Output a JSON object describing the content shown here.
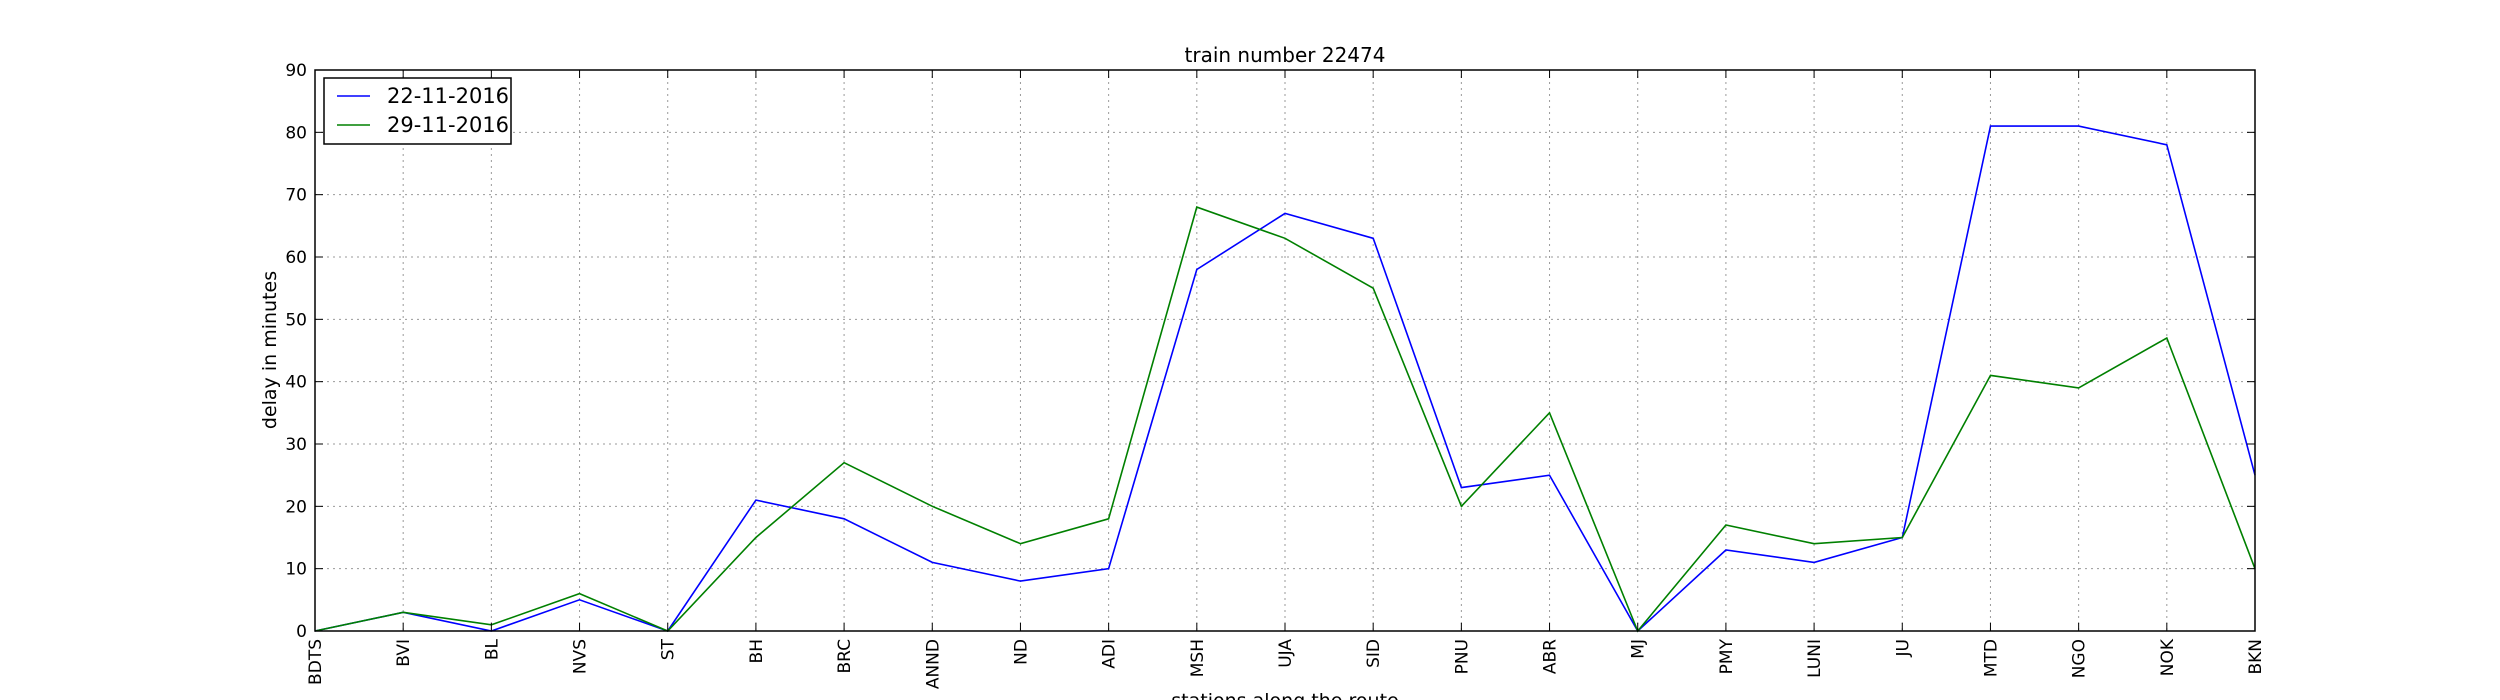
{
  "chart_data": {
    "type": "line",
    "title": "train number 22474",
    "xlabel": "stations along the route",
    "ylabel": "delay in minutes",
    "ylim": [
      0,
      90
    ],
    "yticks": [
      0,
      10,
      20,
      30,
      40,
      50,
      60,
      70,
      80,
      90
    ],
    "grid": true,
    "legend_position": "top-left",
    "categories": [
      "BDTS",
      "BVI",
      "BL",
      "NVS",
      "ST",
      "BH",
      "BRC",
      "ANND",
      "ND",
      "ADI",
      "MSH",
      "UJA",
      "SID",
      "PNU",
      "ABR",
      "MJ",
      "PMY",
      "LUNI",
      "JU",
      "MTD",
      "NGO",
      "NOK",
      "BKN"
    ],
    "series": [
      {
        "name": "22-11-2016",
        "color": "#0000ff",
        "values": [
          0,
          3,
          0,
          5,
          0,
          21,
          18,
          11,
          8,
          10,
          58,
          67,
          63,
          23,
          25,
          0,
          13,
          11,
          15,
          81,
          81,
          78,
          25
        ]
      },
      {
        "name": "29-11-2016",
        "color": "#008000",
        "values": [
          0,
          3,
          1,
          6,
          0,
          15,
          27,
          20,
          14,
          18,
          68,
          63,
          55,
          20,
          35,
          0,
          17,
          14,
          15,
          41,
          39,
          47,
          10
        ]
      }
    ]
  }
}
